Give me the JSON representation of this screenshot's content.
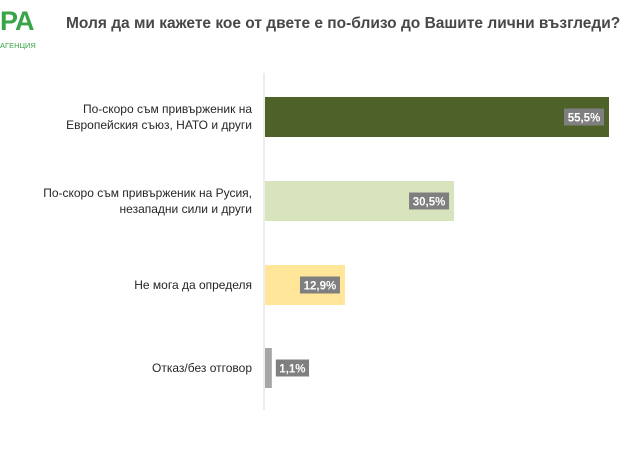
{
  "logo": {
    "mark": "PA",
    "subtitle": "АГЕНЦИЯ"
  },
  "header": {
    "title": "Моля да ми кажете кое от двете е по-близо до Вашите лични възгледи?"
  },
  "chart_data": {
    "type": "bar",
    "orientation": "horizontal",
    "title": "Моля да ми кажете кое от двете е по-близо до Вашите лични възгледи?",
    "xlabel": "",
    "ylabel": "",
    "xlim": [
      0,
      55.5
    ],
    "grid": false,
    "legend": "none",
    "categories": [
      [
        "По-скоро съм привърженик на",
        "Европейския съюз, НАТО и други"
      ],
      [
        "По-скоро съм привърженик на Русия,",
        "незападни сили и други"
      ],
      [
        "Не мога да определя"
      ],
      [
        "Отказ/без отговор"
      ]
    ],
    "values": [
      55.5,
      30.5,
      12.9,
      1.1
    ],
    "value_labels": [
      "55,5%",
      "30,5%",
      "12,9%",
      "1,1%"
    ],
    "colors": [
      "#4e6128",
      "#d7e4bd",
      "#ffe699",
      "#a6a6a6"
    ],
    "label_bg": "#7f7f7f"
  }
}
